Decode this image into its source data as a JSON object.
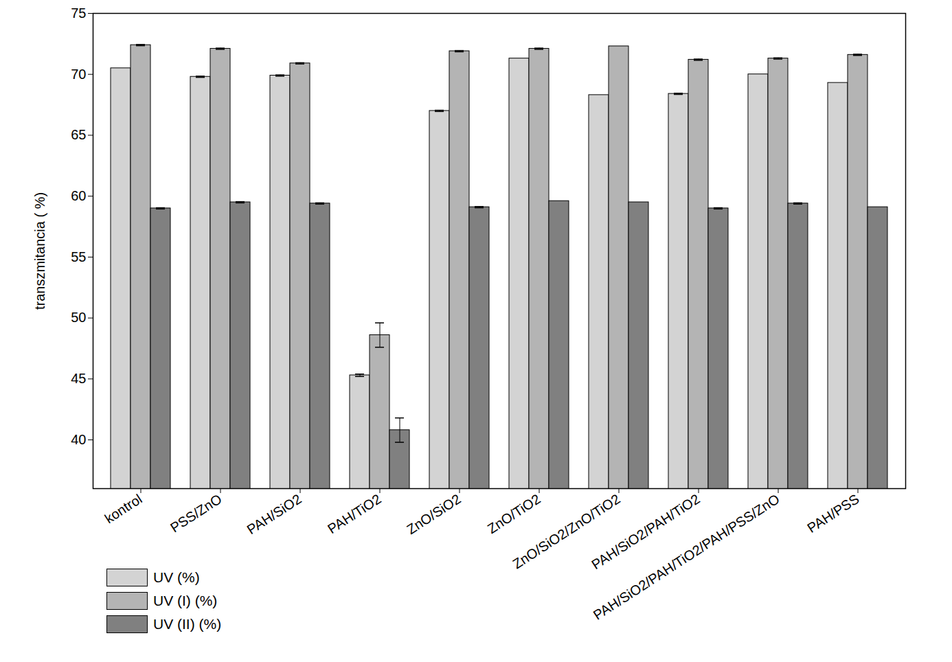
{
  "chart_data": {
    "type": "bar",
    "y_label": "transzmitancia ( %)",
    "categories": [
      "kontrol",
      "PSS/ZnO",
      "PAH/SiO2",
      "PAH/TiO2",
      "ZnO/SiO2",
      "ZnO/TiO2",
      "ZnO/SiO2/ZnO/TiO2",
      "PAH/SiO2/PAH/TiO2",
      "PAH/SiO2/PAH/TiO2/PAH/PSS/ZnO",
      "PAH/PSS"
    ],
    "series": [
      {
        "name": "UV (%)",
        "color": "#d3d3d3",
        "values": [
          70.5,
          69.8,
          69.9,
          45.3,
          67.0,
          71.3,
          68.3,
          68.4,
          70.0,
          69.3
        ],
        "errors": [
          0,
          0.05,
          0.05,
          0.1,
          0.05,
          0,
          0,
          0.05,
          0,
          0
        ]
      },
      {
        "name": "UV (I) (%)",
        "color": "#b4b4b4",
        "values": [
          72.4,
          72.1,
          70.9,
          48.6,
          71.9,
          72.1,
          72.3,
          71.2,
          71.3,
          71.6
        ],
        "errors": [
          0.05,
          0.05,
          0.05,
          1.0,
          0.05,
          0.05,
          0,
          0.05,
          0.05,
          0.05
        ]
      },
      {
        "name": "UV (II) (%)",
        "color": "#808080",
        "values": [
          59.0,
          59.5,
          59.4,
          40.8,
          59.1,
          59.6,
          59.5,
          59.0,
          59.4,
          59.1
        ],
        "errors": [
          0.05,
          0.05,
          0.05,
          1.0,
          0.05,
          0,
          0,
          0.05,
          0.05,
          0
        ]
      }
    ],
    "ylim": [
      36,
      75
    ],
    "yticks": [
      40,
      45,
      50,
      55,
      60,
      65,
      70,
      75
    ],
    "legend": "bottom-left",
    "grid": false
  }
}
